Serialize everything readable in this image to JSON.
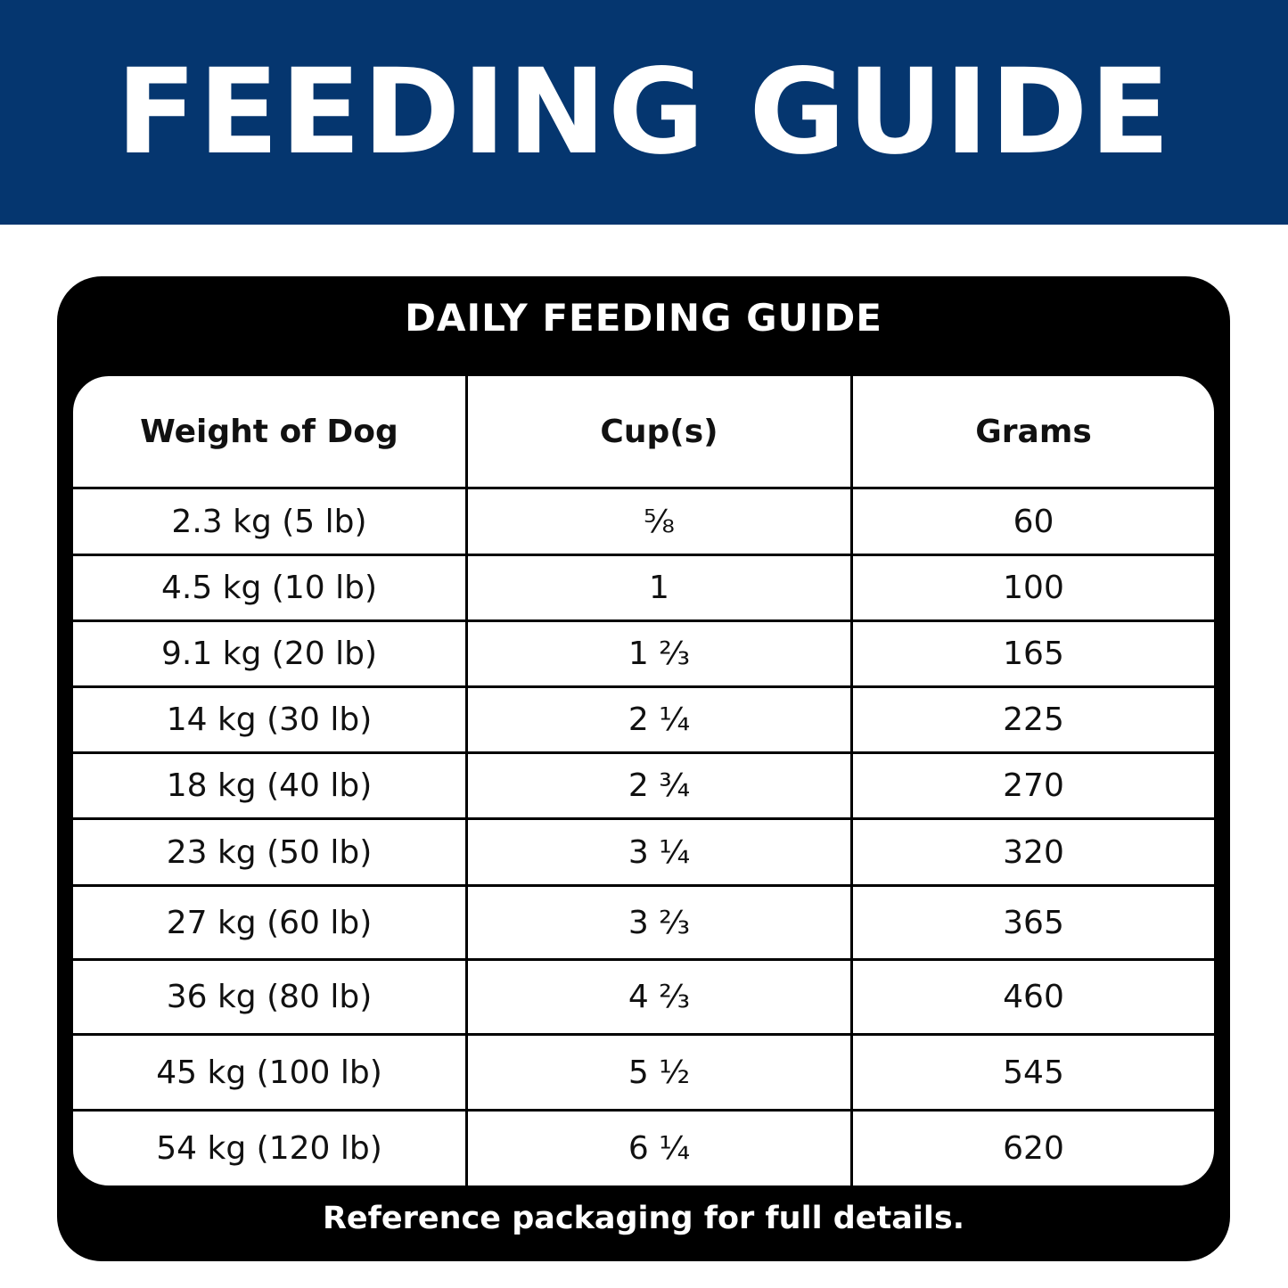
{
  "header": {
    "title": "FEEDING GUIDE"
  },
  "table": {
    "title": "DAILY FEEDING GUIDE",
    "columns": [
      "Weight of Dog",
      "Cup(s)",
      "Grams"
    ],
    "rows": [
      [
        "2.3 kg (5 lb)",
        "⅝",
        "60"
      ],
      [
        "4.5 kg (10 lb)",
        "1",
        "100"
      ],
      [
        "9.1 kg (20 lb)",
        "1 ⅔",
        "165"
      ],
      [
        "14 kg (30 lb)",
        "2 ¼",
        "225"
      ],
      [
        "18 kg (40 lb)",
        "2 ¾",
        "270"
      ],
      [
        "23 kg (50 lb)",
        "3 ¼",
        "320"
      ],
      [
        "27 kg (60 lb)",
        "3 ⅔",
        "365"
      ],
      [
        "36 kg (80 lb)",
        "4 ⅔",
        "460"
      ],
      [
        "45 kg (100 lb)",
        "5 ½",
        "545"
      ],
      [
        "54 kg (120 lb)",
        "6 ¼",
        "620"
      ]
    ]
  },
  "footer": {
    "note": "Reference packaging for full details."
  }
}
